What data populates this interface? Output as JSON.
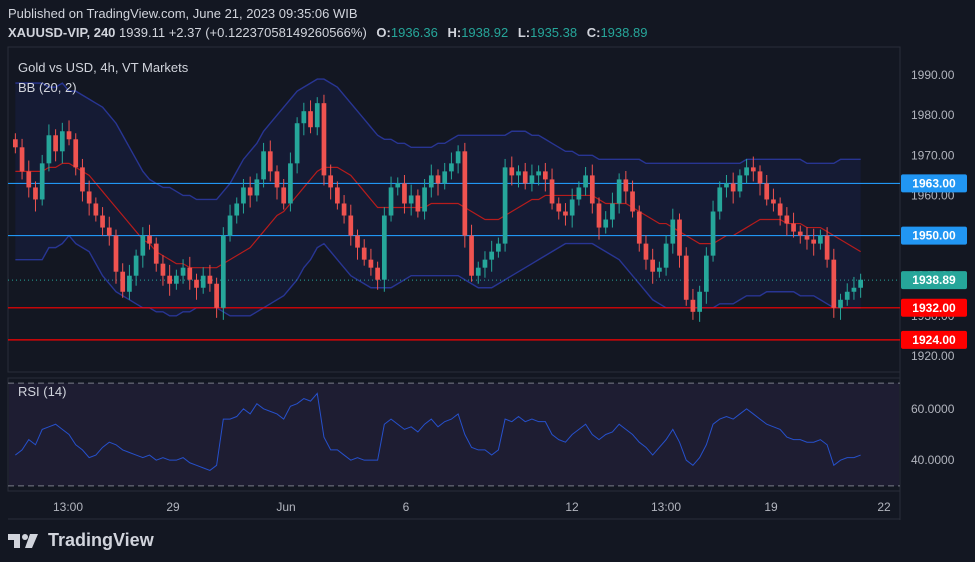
{
  "header": {
    "published": "Published on TradingView.com, June 21, 2023 09:35:06 WIB",
    "symbol": "XAUUSD-VIP, 240",
    "last": "1939.11",
    "change": "+2.37 (+0.12237058149260566%)",
    "o_label": "O:",
    "o": "1936.36",
    "h_label": "H:",
    "h": "1938.92",
    "l_label": "L:",
    "l": "1935.38",
    "c_label": "C:",
    "c": "1938.89"
  },
  "chart_data": {
    "type": "candlestick",
    "title": "Gold vs USD, 4h, VT Markets",
    "indicator": "BB (20, 2)",
    "price_axis": {
      "ticks": [
        1990,
        1980,
        1970,
        1960,
        1950,
        1940,
        1930,
        1920
      ],
      "tick_labels": [
        "1990.00",
        "1980.00",
        "1970.00",
        "1960.00",
        "1950.00",
        "1940.00",
        "1930.00",
        "1920.00"
      ],
      "range": [
        1916,
        1997
      ]
    },
    "time_axis": {
      "labels": [
        "13:00",
        "29",
        "Jun",
        "6",
        "12",
        "13:00",
        "19",
        "22"
      ]
    },
    "horizontal_lines": [
      {
        "price": 1963.0,
        "label": "1963.00",
        "color": "#2196f3"
      },
      {
        "price": 1950.0,
        "label": "1950.00",
        "color": "#2196f3"
      },
      {
        "price": 1932.0,
        "label": "1932.00",
        "color": "#ff0000"
      },
      {
        "price": 1924.0,
        "label": "1924.00",
        "color": "#ff0000"
      }
    ],
    "current_price": {
      "price": 1938.89,
      "label": "1938.89",
      "color": "#26a69a"
    },
    "closes": [
      1972,
      1966,
      1962,
      1959,
      1968,
      1975,
      1971,
      1976,
      1974,
      1967,
      1961,
      1958,
      1955,
      1952,
      1950,
      1941,
      1936,
      1940,
      1945,
      1950,
      1948,
      1943,
      1940,
      1938,
      1940,
      1942,
      1939,
      1937,
      1940,
      1938,
      1932,
      1950,
      1955,
      1958,
      1962,
      1960,
      1964,
      1971,
      1966,
      1962,
      1958,
      1968,
      1978,
      1981,
      1977,
      1983,
      1965,
      1962,
      1958,
      1955,
      1950,
      1947,
      1944,
      1942,
      1939,
      1955,
      1962,
      1963,
      1958,
      1960,
      1956,
      1962,
      1965,
      1963,
      1966,
      1968,
      1971,
      1950,
      1940,
      1942,
      1944,
      1946,
      1948,
      1967,
      1965,
      1966,
      1963,
      1965,
      1966,
      1964,
      1958,
      1956,
      1955,
      1959,
      1962,
      1965,
      1958,
      1952,
      1954,
      1958,
      1964,
      1961,
      1956,
      1948,
      1944,
      1941,
      1942,
      1948,
      1954,
      1945,
      1934,
      1931,
      1936,
      1945,
      1956,
      1962,
      1963,
      1961,
      1965,
      1967,
      1966,
      1963,
      1959,
      1958,
      1955,
      1953,
      1951,
      1950,
      1949,
      1948,
      1950,
      1944,
      1932,
      1934,
      1936,
      1937,
      1939
    ],
    "bb_middle": [
      1966,
      1966,
      1966,
      1966,
      1966,
      1967,
      1967,
      1968,
      1968,
      1967,
      1966,
      1965,
      1963,
      1961,
      1959,
      1957,
      1955,
      1953,
      1951,
      1949,
      1948,
      1946,
      1945,
      1944,
      1943,
      1943,
      1942,
      1942,
      1942,
      1942,
      1942,
      1943,
      1944,
      1945,
      1946,
      1947,
      1949,
      1951,
      1953,
      1955,
      1956,
      1958,
      1960,
      1962,
      1964,
      1966,
      1967,
      1967,
      1967,
      1966,
      1965,
      1963,
      1961,
      1959,
      1957,
      1957,
      1957,
      1957,
      1957,
      1957,
      1957,
      1957,
      1958,
      1958,
      1958,
      1958,
      1958,
      1957,
      1956,
      1955,
      1954,
      1954,
      1954,
      1955,
      1956,
      1957,
      1958,
      1959,
      1959,
      1960,
      1960,
      1960,
      1960,
      1960,
      1960,
      1960,
      1960,
      1959,
      1958,
      1958,
      1958,
      1958,
      1957,
      1956,
      1955,
      1954,
      1953,
      1953,
      1952,
      1951,
      1950,
      1949,
      1948,
      1948,
      1948,
      1949,
      1950,
      1950,
      1951,
      1952,
      1953,
      1954,
      1954,
      1954,
      1954,
      1953,
      1953,
      1953,
      1952,
      1952,
      1952,
      1951,
      1950,
      1949,
      1948,
      1947,
      1946
    ],
    "bb_upper": [
      1988,
      1988,
      1988,
      1988,
      1988,
      1987,
      1987,
      1988,
      1986,
      1986,
      1985,
      1984,
      1983,
      1982,
      1980,
      1978,
      1975,
      1972,
      1969,
      1966,
      1964,
      1963,
      1962,
      1962,
      1961,
      1960,
      1960,
      1959,
      1959,
      1959,
      1959,
      1961,
      1963,
      1966,
      1969,
      1971,
      1973,
      1976,
      1978,
      1980,
      1982,
      1984,
      1986,
      1987,
      1988,
      1989,
      1989,
      1988,
      1987,
      1985,
      1983,
      1981,
      1979,
      1977,
      1975,
      1974,
      1974,
      1973,
      1973,
      1972,
      1972,
      1972,
      1972,
      1973,
      1973,
      1974,
      1975,
      1975,
      1975,
      1975,
      1975,
      1975,
      1975,
      1975,
      1976,
      1976,
      1976,
      1975,
      1975,
      1974,
      1973,
      1972,
      1971,
      1971,
      1970,
      1970,
      1970,
      1969,
      1969,
      1969,
      1969,
      1969,
      1969,
      1969,
      1968,
      1968,
      1968,
      1968,
      1968,
      1968,
      1968,
      1968,
      1968,
      1968,
      1968,
      1968,
      1968,
      1968,
      1968,
      1969,
      1969,
      1969,
      1969,
      1969,
      1969,
      1969,
      1969,
      1969,
      1968,
      1968,
      1968,
      1968,
      1968,
      1969,
      1969,
      1969,
      1969
    ],
    "bb_lower": [
      1944,
      1944,
      1944,
      1944,
      1944,
      1947,
      1947,
      1948,
      1950,
      1948,
      1947,
      1946,
      1943,
      1940,
      1938,
      1936,
      1935,
      1934,
      1933,
      1932,
      1932,
      1931,
      1931,
      1930,
      1930,
      1931,
      1931,
      1932,
      1932,
      1932,
      1932,
      1931,
      1930,
      1930,
      1930,
      1930,
      1931,
      1932,
      1933,
      1934,
      1935,
      1937,
      1939,
      1942,
      1944,
      1947,
      1948,
      1946,
      1944,
      1942,
      1940,
      1939,
      1938,
      1937,
      1937,
      1937,
      1937,
      1938,
      1939,
      1940,
      1940,
      1940,
      1940,
      1940,
      1940,
      1940,
      1940,
      1939,
      1938,
      1937,
      1937,
      1937,
      1938,
      1939,
      1940,
      1941,
      1942,
      1943,
      1944,
      1945,
      1946,
      1947,
      1948,
      1948,
      1948,
      1948,
      1948,
      1947,
      1946,
      1945,
      1944,
      1942,
      1940,
      1938,
      1936,
      1934,
      1933,
      1932,
      1932,
      1932,
      1932,
      1932,
      1932,
      1932,
      1932,
      1933,
      1933,
      1933,
      1934,
      1935,
      1935,
      1935,
      1936,
      1936,
      1936,
      1936,
      1936,
      1935,
      1935,
      1935,
      1934,
      1933,
      1932,
      1932,
      1932,
      1932,
      1932
    ],
    "rsi": {
      "name": "RSI (14)",
      "ticks": [
        60,
        40
      ],
      "tick_labels": [
        "60.0000",
        "40.0000"
      ],
      "range": [
        28,
        72
      ],
      "upper_band": 70,
      "lower_band": 30,
      "values": [
        42,
        44,
        48,
        46,
        52,
        53,
        54,
        52,
        50,
        46,
        44,
        41,
        42,
        45,
        47,
        46,
        44,
        43,
        42,
        41,
        42,
        40,
        41,
        40,
        40,
        41,
        39,
        38,
        37,
        36,
        38,
        56,
        56,
        57,
        60,
        58,
        62,
        60,
        59,
        58,
        56,
        61,
        62,
        64,
        63,
        66,
        49,
        44,
        44,
        42,
        40,
        41,
        40,
        40,
        40,
        54,
        56,
        54,
        52,
        53,
        51,
        54,
        56,
        53,
        55,
        56,
        58,
        50,
        45,
        44,
        44,
        42,
        44,
        56,
        55,
        57,
        55,
        56,
        55,
        55,
        50,
        48,
        47,
        50,
        52,
        54,
        50,
        48,
        50,
        51,
        54,
        52,
        50,
        47,
        45,
        42,
        45,
        48,
        52,
        47,
        40,
        38,
        41,
        46,
        54,
        56,
        57,
        56,
        58,
        60,
        58,
        56,
        54,
        53,
        52,
        49,
        48,
        48,
        47,
        47,
        48,
        46,
        38,
        40,
        41,
        41,
        42
      ],
      "color": "#2962ff"
    }
  },
  "colors": {
    "up": "#26a69a",
    "down": "#ef5350",
    "bb_band": "#1a237e",
    "bb_mid": "#b71c1c",
    "background": "#131722"
  },
  "brand": {
    "name": "TradingView"
  }
}
